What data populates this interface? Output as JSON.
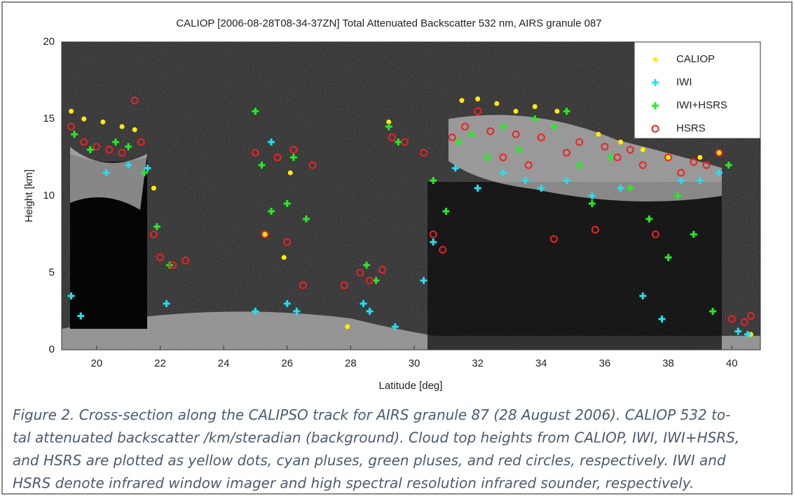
{
  "chart_data": {
    "type": "scatter",
    "title": "CALIOP [2006-08-28T08-34-37ZN] Total Attenuated Backscatter 532 nm, AIRS granule 087",
    "x_label": "Latitude [deg]",
    "y_label": "Height [km]",
    "xlim": [
      18.9,
      40.9
    ],
    "ylim": [
      0,
      20
    ],
    "xticks": [
      20,
      22,
      24,
      26,
      28,
      30,
      32,
      34,
      36,
      38,
      40
    ],
    "yticks": [
      0,
      5,
      10,
      15,
      20
    ],
    "legend": "upper right",
    "series": [
      {
        "name": "CALIOP",
        "color": "#ffee00",
        "marker": "dot",
        "x": [
          19.2,
          19.6,
          20.2,
          20.8,
          21.2,
          21.8,
          25.3,
          25.9,
          26.1,
          27.9,
          29.2,
          31.5,
          32.0,
          32.6,
          33.2,
          33.8,
          34.5,
          35.8,
          36.5,
          37.2,
          38.0,
          39.0,
          39.6,
          40.6
        ],
        "y": [
          15.5,
          15.0,
          14.8,
          14.5,
          14.3,
          10.5,
          7.5,
          6.0,
          11.5,
          1.5,
          14.8,
          16.2,
          16.3,
          16.0,
          15.5,
          15.8,
          15.5,
          14.0,
          13.5,
          13.0,
          12.5,
          12.5,
          12.8,
          1.0
        ]
      },
      {
        "name": "IWI",
        "color": "#22e0f0",
        "marker": "plus",
        "x": [
          19.2,
          19.5,
          20.3,
          21.0,
          21.6,
          22.2,
          25.0,
          25.5,
          26.0,
          26.3,
          28.4,
          28.6,
          29.4,
          30.3,
          30.6,
          31.3,
          32.0,
          32.8,
          33.5,
          34.0,
          34.8,
          35.6,
          36.5,
          37.2,
          37.8,
          38.4,
          39.0,
          39.6,
          40.2,
          40.5
        ],
        "y": [
          3.5,
          2.2,
          11.5,
          12.0,
          11.8,
          3.0,
          2.5,
          13.5,
          3.0,
          2.5,
          3.0,
          2.5,
          1.5,
          4.5,
          7.0,
          11.8,
          10.5,
          11.5,
          11.0,
          10.5,
          11.0,
          10.0,
          10.5,
          3.5,
          2.0,
          11.0,
          11.0,
          11.5,
          1.2,
          1.0
        ]
      },
      {
        "name": "IWI+HSRS",
        "color": "#22ee22",
        "marker": "plus",
        "x": [
          19.3,
          19.8,
          20.6,
          21.0,
          21.5,
          21.9,
          22.3,
          25.0,
          25.2,
          25.5,
          26.0,
          26.2,
          26.6,
          28.5,
          28.8,
          29.2,
          29.5,
          30.6,
          31.0,
          31.4,
          31.8,
          32.3,
          32.8,
          33.3,
          33.8,
          34.4,
          34.8,
          35.2,
          35.6,
          36.2,
          36.8,
          37.4,
          38.0,
          38.3,
          38.8,
          39.4,
          39.9
        ],
        "y": [
          14.0,
          13.0,
          13.5,
          13.2,
          11.5,
          8.0,
          5.5,
          15.5,
          12.0,
          9.0,
          9.5,
          12.5,
          8.5,
          5.5,
          4.5,
          14.5,
          13.5,
          11.0,
          9.0,
          13.5,
          14.0,
          12.5,
          14.5,
          13.0,
          15.0,
          14.5,
          15.5,
          12.0,
          9.5,
          12.5,
          10.5,
          8.5,
          6.0,
          10.0,
          7.5,
          2.5,
          12.0
        ]
      },
      {
        "name": "HSRS",
        "color": "#ee2222",
        "marker": "circle",
        "x": [
          19.2,
          19.6,
          20.0,
          20.4,
          20.8,
          21.2,
          21.4,
          21.8,
          22.0,
          22.4,
          22.8,
          25.0,
          25.3,
          25.7,
          26.0,
          26.2,
          26.5,
          26.8,
          27.8,
          28.3,
          28.6,
          29.0,
          29.3,
          29.7,
          30.3,
          30.6,
          30.9,
          31.2,
          31.6,
          32.0,
          32.4,
          32.8,
          33.2,
          33.6,
          34.0,
          34.4,
          34.8,
          35.2,
          35.7,
          36.0,
          36.4,
          36.8,
          37.2,
          37.6,
          38.0,
          38.4,
          38.8,
          39.2,
          39.6,
          40.0,
          40.4,
          40.6
        ],
        "y": [
          14.5,
          13.5,
          13.2,
          13.0,
          12.8,
          16.2,
          13.5,
          7.5,
          6.0,
          5.5,
          5.8,
          12.8,
          7.5,
          12.5,
          7.0,
          13.0,
          4.2,
          12.0,
          4.2,
          5.0,
          4.5,
          5.2,
          13.8,
          13.5,
          12.8,
          7.5,
          6.5,
          13.8,
          14.5,
          15.5,
          14.2,
          12.5,
          14.0,
          12.0,
          13.8,
          7.2,
          12.8,
          13.5,
          7.8,
          13.2,
          12.5,
          13.0,
          12.0,
          7.5,
          12.5,
          11.5,
          12.2,
          12.0,
          12.8,
          2.0,
          1.8,
          2.2
        ]
      }
    ]
  },
  "caption": {
    "lines": [
      "Figure 2. Cross-section along the CALIPSO track for AIRS granule 87 (28 August 2006). CALIOP 532 to-",
      "tal attenuated backscatter /km/steradian (background). Cloud top heights from CALIOP, IWI, IWI+HSRS,",
      "and HSRS are plotted as yellow dots, cyan pluses, green pluses, and red circles, respectively. IWI and",
      "HSRS denote infrared window imager and high spectral resolution infrared sounder, respectively."
    ]
  }
}
